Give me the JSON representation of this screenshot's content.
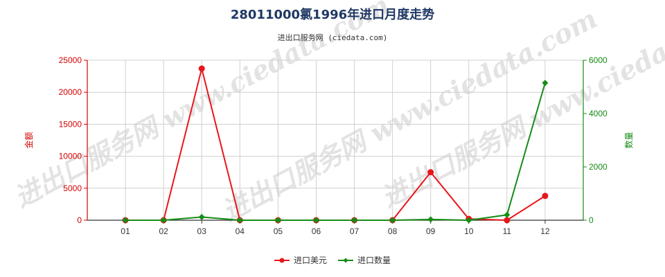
{
  "chart_data": {
    "type": "line",
    "title": "28011000氯1996年进口月度走势",
    "subtitle": "进出口服务网 (ciedata.com)",
    "watermark": "进出口服务网 www.ciedata.com",
    "categories": [
      "01",
      "02",
      "03",
      "04",
      "05",
      "06",
      "07",
      "08",
      "09",
      "10",
      "11",
      "12"
    ],
    "left_axis": {
      "label": "金额",
      "range": [
        0,
        25000
      ],
      "ticks": [
        "0",
        "5000",
        "10000",
        "15000",
        "20000",
        "25000"
      ],
      "color": "#d40000"
    },
    "right_axis": {
      "label": "数量",
      "range": [
        0,
        6000
      ],
      "ticks": [
        "0",
        "2000",
        "4000",
        "6000"
      ],
      "color": "#138a13"
    },
    "grid": true,
    "legend_placement": "bottom-center",
    "series": [
      {
        "name": "进口美元",
        "axis": "left",
        "color": "#e8161b",
        "marker": "circle",
        "values": [
          0,
          0,
          23700,
          0,
          0,
          0,
          0,
          0,
          7500,
          200,
          0,
          3800
        ]
      },
      {
        "name": "进口数量",
        "axis": "right",
        "color": "#168c16",
        "marker": "diamond",
        "values": [
          0,
          0,
          120,
          0,
          0,
          0,
          0,
          0,
          30,
          0,
          200,
          5150
        ]
      }
    ]
  }
}
